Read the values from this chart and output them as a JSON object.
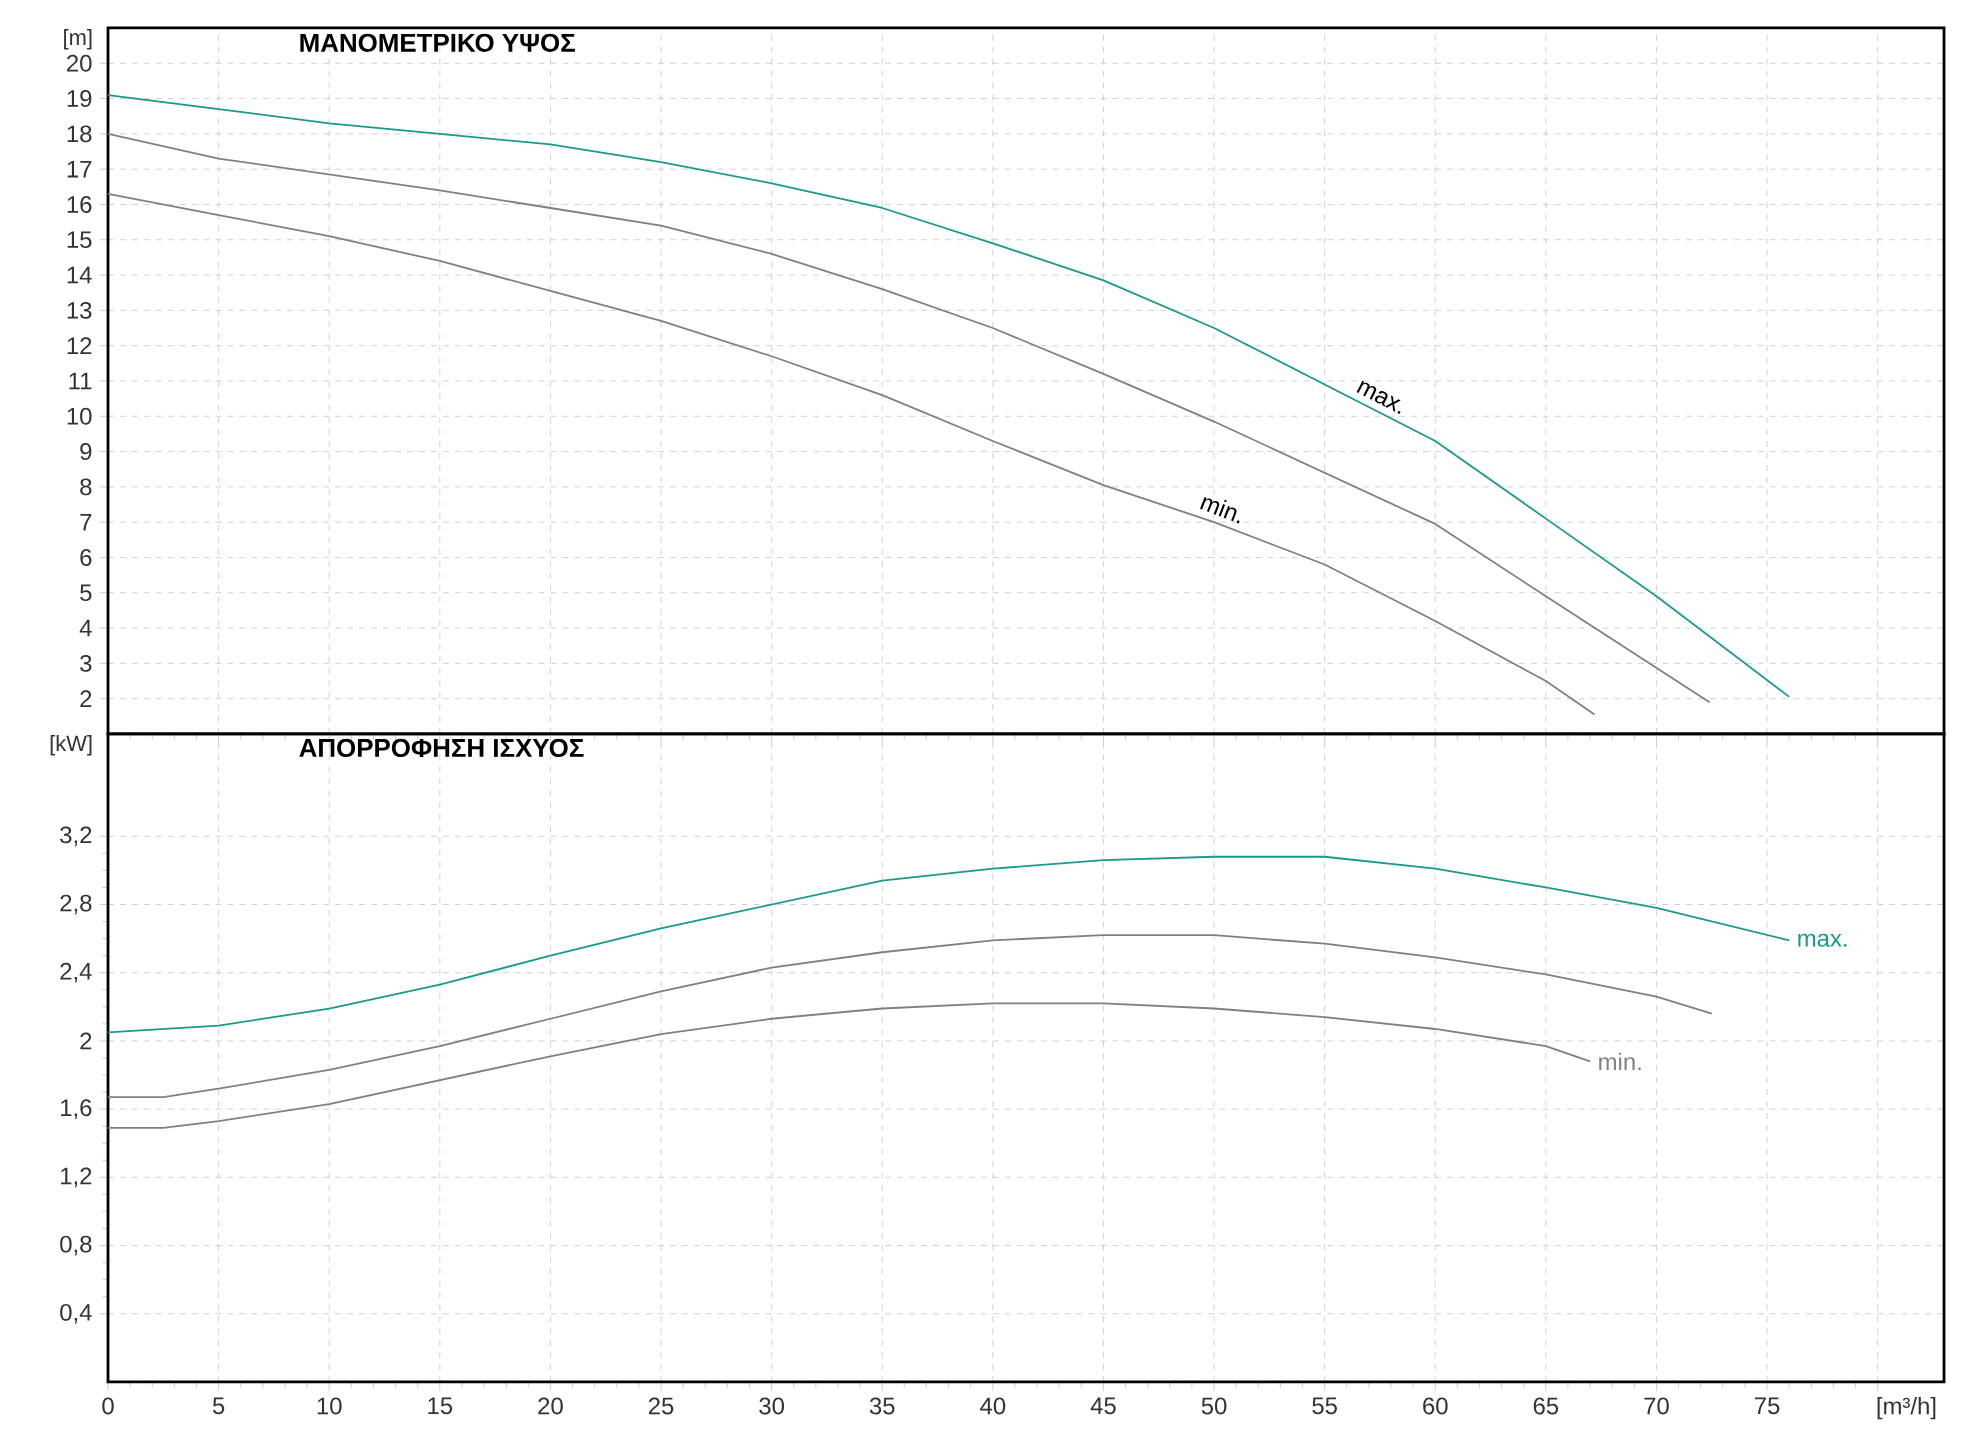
{
  "chart_data": [
    {
      "type": "line",
      "title": "ΜΑΝΟΜΕΤΡΙΚΟ ΥΨΟΣ",
      "ylabel": "[m]",
      "xlim": [
        0,
        83
      ],
      "ylim": [
        1,
        21
      ],
      "xticks": [
        0,
        5,
        10,
        15,
        20,
        25,
        30,
        35,
        40,
        45,
        50,
        55,
        60,
        65,
        70,
        75,
        80
      ],
      "yticks": [
        2,
        3,
        4,
        5,
        6,
        7,
        8,
        9,
        10,
        11,
        12,
        13,
        14,
        15,
        16,
        17,
        18,
        19,
        20
      ],
      "grid": true,
      "tick_labels": "y",
      "series": [
        {
          "name": "max.",
          "color": "#1a9a8a",
          "x": [
            0,
            5,
            10,
            15,
            20,
            25,
            30,
            35,
            40,
            45,
            50,
            55,
            60,
            65,
            70,
            76
          ],
          "values": [
            19.1,
            18.7,
            18.3,
            18.0,
            17.7,
            17.2,
            16.6,
            15.9,
            14.9,
            13.85,
            12.5,
            10.9,
            9.3,
            7.1,
            4.9,
            2.05
          ]
        },
        {
          "color": "#808080",
          "x": [
            0,
            5,
            10,
            15,
            20,
            25,
            30,
            35,
            40,
            45,
            50,
            55,
            60,
            65,
            72.4
          ],
          "values": [
            18.0,
            17.3,
            16.85,
            16.4,
            15.9,
            15.4,
            14.6,
            13.6,
            12.5,
            11.2,
            9.85,
            8.4,
            6.95,
            4.9,
            1.9
          ]
        },
        {
          "name": "min.",
          "color": "#808080",
          "x": [
            0,
            5,
            10,
            15,
            20,
            25,
            30,
            35,
            40,
            45,
            50,
            55,
            60,
            65,
            67.2
          ],
          "values": [
            16.3,
            15.7,
            15.1,
            14.4,
            13.55,
            12.7,
            11.7,
            10.6,
            9.3,
            8.05,
            7.0,
            5.8,
            4.2,
            2.5,
            1.55
          ]
        }
      ]
    },
    {
      "type": "line",
      "title": "ΑΠΟΡΡΟΦΗΣΗ ΙΣΧΥΟΣ",
      "ylabel": "[kW]",
      "xlabel": "[m³/h]",
      "xlim": [
        0,
        83
      ],
      "ylim": [
        0,
        3.8
      ],
      "xticks": [
        0,
        5,
        10,
        15,
        20,
        25,
        30,
        35,
        40,
        45,
        50,
        55,
        60,
        65,
        70,
        75,
        {
          "value": 80,
          "label": null
        }
      ],
      "yticks": [
        {
          "value": 0.4,
          "label": "0,4"
        },
        {
          "value": 0.8,
          "label": "0,8"
        },
        {
          "value": 1.2,
          "label": "1,2"
        },
        {
          "value": 1.6,
          "label": "1,6"
        },
        2,
        {
          "value": 2.4,
          "label": "2,4"
        },
        {
          "value": 2.8,
          "label": "2,8"
        },
        {
          "value": 3.2,
          "label": "3,2"
        }
      ],
      "grid": true,
      "series": [
        {
          "name": "max.",
          "color": "#1a9a8a",
          "x": [
            0,
            5,
            10,
            15,
            20,
            25,
            30,
            35,
            40,
            45,
            50,
            55,
            60,
            65,
            70,
            76
          ],
          "values": [
            2.05,
            2.09,
            2.19,
            2.33,
            2.5,
            2.66,
            2.8,
            2.94,
            3.01,
            3.06,
            3.08,
            3.08,
            3.01,
            2.9,
            2.78,
            2.59
          ]
        },
        {
          "color": "#808080",
          "x": [
            0,
            2.5,
            5,
            10,
            15,
            20,
            25,
            30,
            35,
            40,
            45,
            50,
            55,
            60,
            65,
            70,
            72.5
          ],
          "values": [
            1.67,
            1.67,
            1.72,
            1.83,
            1.97,
            2.13,
            2.29,
            2.43,
            2.52,
            2.59,
            2.62,
            2.62,
            2.57,
            2.49,
            2.39,
            2.26,
            2.16
          ]
        },
        {
          "name": "min.",
          "color": "#808080",
          "x": [
            0,
            2.5,
            5,
            10,
            15,
            20,
            25,
            30,
            35,
            40,
            45,
            50,
            55,
            60,
            65,
            67
          ],
          "values": [
            1.49,
            1.49,
            1.53,
            1.63,
            1.77,
            1.91,
            2.04,
            2.13,
            2.19,
            2.22,
            2.22,
            2.19,
            2.14,
            2.07,
            1.97,
            1.88
          ]
        }
      ]
    }
  ]
}
